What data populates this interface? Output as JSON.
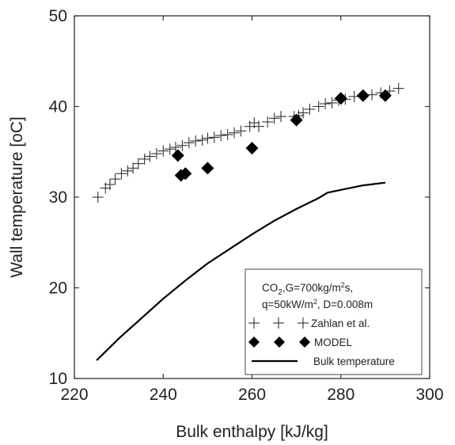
{
  "chart_data": {
    "type": "scatter",
    "xlabel": "Bulk enthalpy [kJ/kg]",
    "ylabel": "Wall temperature [oC]",
    "xlim": [
      220,
      300
    ],
    "ylim": [
      10,
      50
    ],
    "xticks": [
      220,
      240,
      260,
      280,
      300
    ],
    "yticks": [
      10,
      20,
      30,
      40,
      50
    ],
    "grid": false,
    "legend_position": "bottom-right",
    "legend_header": {
      "line1_prefix": "CO",
      "line1_sub": "2",
      "line1_suffix": ",G=700kg/m",
      "line1_sup": "2",
      "line1_tail": "s,",
      "line2_prefix": "q=50kW/m",
      "line2_sup": "2",
      "line2_tail": ", D=0.008m"
    },
    "series": [
      {
        "name": "Zahlan et al.",
        "marker": "plus",
        "color": "#333333",
        "points": [
          [
            225.3,
            30.0
          ],
          [
            227.0,
            31.0
          ],
          [
            228.0,
            31.4
          ],
          [
            229.2,
            32.0
          ],
          [
            230.6,
            32.6
          ],
          [
            232.0,
            32.9
          ],
          [
            233.2,
            33.2
          ],
          [
            234.4,
            33.7
          ],
          [
            235.8,
            34.2
          ],
          [
            237.0,
            34.5
          ],
          [
            238.5,
            34.8
          ],
          [
            240.0,
            35.1
          ],
          [
            241.5,
            35.3
          ],
          [
            242.8,
            35.5
          ],
          [
            244.3,
            35.7
          ],
          [
            245.8,
            36.0
          ],
          [
            247.3,
            36.2
          ],
          [
            248.8,
            36.3
          ],
          [
            250.0,
            36.5
          ],
          [
            251.5,
            36.6
          ],
          [
            253.0,
            36.8
          ],
          [
            254.5,
            36.9
          ],
          [
            256.0,
            37.1
          ],
          [
            257.5,
            37.3
          ],
          [
            259.5,
            37.8
          ],
          [
            260.5,
            38.2
          ],
          [
            261.5,
            37.8
          ],
          [
            263.5,
            38.3
          ],
          [
            265.0,
            38.7
          ],
          [
            266.5,
            38.9
          ],
          [
            269.5,
            38.9
          ],
          [
            270.5,
            39.0
          ],
          [
            271.5,
            39.3
          ],
          [
            273.0,
            39.7
          ],
          [
            275.0,
            40.0
          ],
          [
            276.5,
            40.3
          ],
          [
            278.0,
            40.4
          ],
          [
            279.5,
            40.7
          ],
          [
            281.0,
            40.8
          ],
          [
            283.0,
            41.1
          ],
          [
            285.0,
            41.2
          ],
          [
            287.0,
            41.3
          ],
          [
            289.0,
            41.5
          ],
          [
            291.0,
            41.7
          ],
          [
            293.0,
            42.0
          ]
        ]
      },
      {
        "name": "MODEL",
        "marker": "diamond",
        "color": "#000000",
        "points": [
          [
            243.3,
            34.6
          ],
          [
            244.0,
            32.4
          ],
          [
            245.0,
            32.6
          ],
          [
            250.0,
            33.2
          ],
          [
            260.0,
            35.4
          ],
          [
            270.0,
            38.5
          ],
          [
            280.0,
            40.9
          ],
          [
            285.0,
            41.2
          ],
          [
            290.0,
            41.2
          ]
        ]
      },
      {
        "name": "Bulk temperature",
        "marker": "line",
        "color": "#000000",
        "points": [
          [
            225.0,
            12.0
          ],
          [
            230.0,
            14.4
          ],
          [
            235.0,
            16.6
          ],
          [
            240.0,
            18.8
          ],
          [
            245.0,
            20.8
          ],
          [
            250.0,
            22.7
          ],
          [
            255.0,
            24.3
          ],
          [
            260.0,
            25.9
          ],
          [
            265.0,
            27.4
          ],
          [
            270.0,
            28.7
          ],
          [
            275.0,
            29.9
          ],
          [
            277.0,
            30.5
          ],
          [
            280.0,
            30.8
          ],
          [
            285.0,
            31.3
          ],
          [
            290.0,
            31.6
          ]
        ]
      }
    ]
  }
}
